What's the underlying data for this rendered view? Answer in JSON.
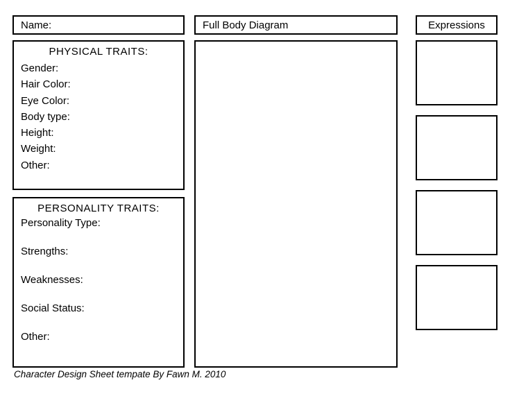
{
  "header": {
    "name_label": "Name:",
    "fullbody_label": "Full Body Diagram",
    "expressions_label": "Expressions"
  },
  "physical": {
    "title": "PHYSICAL TRAITS:",
    "fields": {
      "gender": "Gender:",
      "hair_color": "Hair Color:",
      "eye_color": "Eye Color:",
      "body_type": "Body type:",
      "height": "Height:",
      "weight": "Weight:",
      "other": "Other:"
    }
  },
  "personality": {
    "title": "PERSONALITY TRAITS:",
    "fields": {
      "personality_type": "Personality Type:",
      "strengths": "Strengths:",
      "weaknesses": "Weaknesses:",
      "social_status": "Social Status:",
      "other": "Other:"
    }
  },
  "footer": {
    "credit": "Character Design Sheet tempate By Fawn M. 2010"
  },
  "style": {
    "border_color": "#000000",
    "background_color": "#ffffff",
    "text_color": "#000000"
  }
}
